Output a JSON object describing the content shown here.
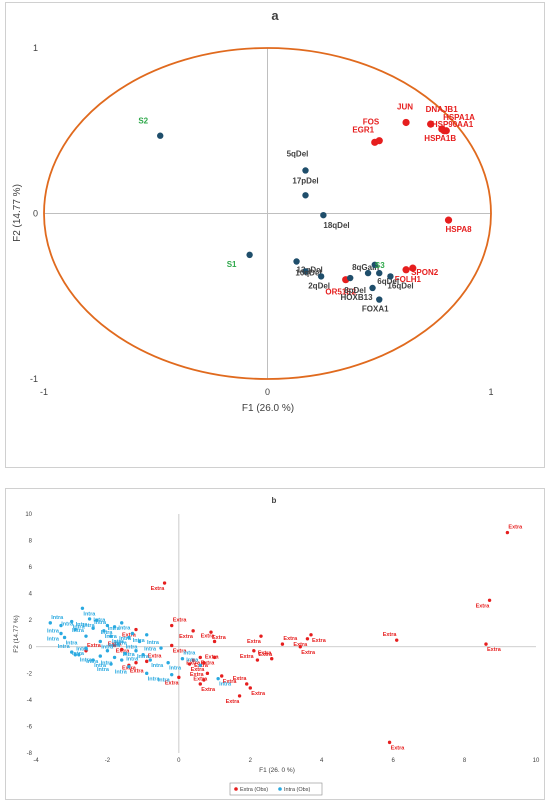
{
  "chart_data": [
    {
      "type": "scatter",
      "title": "a",
      "xlabel": "F1 (26.0 %)",
      "ylabel": "F2 (14.77 %)",
      "xlim": [
        -1,
        1
      ],
      "ylim": [
        -1,
        1
      ],
      "x_ticks": [
        "-1",
        "0",
        "1"
      ],
      "y_ticks": [
        "1",
        "0",
        "-1"
      ],
      "circle": {
        "color": "#E06A1E"
      },
      "colors": {
        "red": "#E61E1E",
        "blue": "#1F4E6B",
        "green": "#2EA84A",
        "dark": "#404040"
      },
      "series": [
        {
          "points": [
            {
              "x": 0.62,
              "y": 0.55,
              "label": "JUN"
            },
            {
              "x": 0.48,
              "y": 0.43,
              "label": "FOS"
            },
            {
              "x": 0.5,
              "y": 0.44,
              "label": "EGR1"
            },
            {
              "x": 0.73,
              "y": 0.54,
              "label": "DNAJB1"
            },
            {
              "x": 0.79,
              "y": 0.5,
              "label": "HSPA1A"
            },
            {
              "x": 0.78,
              "y": 0.51,
              "label": "HSP90AA1"
            },
            {
              "x": 0.8,
              "y": 0.5,
              "label": "HSPA1B"
            },
            {
              "x": 0.81,
              "y": -0.04,
              "label": "HSPA8"
            },
            {
              "x": 0.62,
              "y": -0.34,
              "label": "SPON2"
            },
            {
              "x": 0.65,
              "y": -0.33,
              "label": "FOLH1"
            },
            {
              "x": 0.35,
              "y": -0.4,
              "label": "OR51E2"
            }
          ]
        },
        {
          "points": [
            {
              "x": 0.17,
              "y": 0.26,
              "label": "5qDel"
            },
            {
              "x": 0.17,
              "y": 0.11,
              "label": "17pDel"
            },
            {
              "x": 0.25,
              "y": -0.01,
              "label": "18qDel"
            },
            {
              "x": 0.13,
              "y": -0.29,
              "label": "13qDel"
            },
            {
              "x": 0.17,
              "y": -0.35,
              "label": "10qDel"
            },
            {
              "x": 0.24,
              "y": -0.38,
              "label": "2qDel"
            },
            {
              "x": 0.37,
              "y": -0.39,
              "label": "8pDel"
            },
            {
              "x": 0.45,
              "y": -0.36,
              "label": "8qGain"
            },
            {
              "x": 0.5,
              "y": -0.36,
              "label": "6qDel"
            },
            {
              "x": 0.55,
              "y": -0.38,
              "label": "16qDel"
            },
            {
              "x": 0.47,
              "y": -0.45,
              "label": "HOXB13"
            },
            {
              "x": 0.5,
              "y": -0.52,
              "label": "FOXA1"
            },
            {
              "x": -0.48,
              "y": 0.47,
              "label": "S2"
            },
            {
              "x": -0.08,
              "y": -0.25,
              "label": "S1"
            },
            {
              "x": 0.48,
              "y": -0.31,
              "label": "S3"
            }
          ]
        }
      ]
    },
    {
      "type": "scatter",
      "title": "b",
      "xlabel": "F1 (26. 0 %)",
      "ylabel": "F2 (14.77 %)",
      "xlim": [
        -4,
        10
      ],
      "ylim": [
        -8,
        10
      ],
      "x_ticks": [
        "-4",
        "-2",
        "0",
        "2",
        "4",
        "6",
        "8",
        "10"
      ],
      "y_ticks": [
        "10",
        "8",
        "6",
        "4",
        "2",
        "0",
        "-2",
        "-4",
        "-6",
        "-8"
      ],
      "legend": {
        "position": "bottom",
        "items": [
          "Extra (Obs)",
          "Intra (Obs)"
        ]
      },
      "series": [
        {
          "name": "Extra (Obs)",
          "color": "#E61E1E",
          "point_label": "Extra",
          "points": [
            [
              9.2,
              8.6
            ],
            [
              8.7,
              3.5
            ],
            [
              8.6,
              0.2
            ],
            [
              6.1,
              0.5
            ],
            [
              5.9,
              -7.2
            ],
            [
              -0.4,
              4.8
            ],
            [
              -0.2,
              1.6
            ],
            [
              0.4,
              1.2
            ],
            [
              0.9,
              1.1
            ],
            [
              1.0,
              0.4
            ],
            [
              -0.2,
              0.1
            ],
            [
              2.3,
              0.8
            ],
            [
              2.9,
              0.2
            ],
            [
              3.6,
              0.6
            ],
            [
              3.7,
              0.9
            ],
            [
              2.6,
              -0.9
            ],
            [
              3.4,
              0.0
            ],
            [
              2.1,
              -0.3
            ],
            [
              2.2,
              -1.0
            ],
            [
              1.7,
              -3.7
            ],
            [
              2.0,
              -3.1
            ],
            [
              1.9,
              -2.8
            ],
            [
              1.2,
              -2.2
            ],
            [
              0.8,
              -2.0
            ],
            [
              0.7,
              -1.2
            ],
            [
              0.6,
              -0.8
            ],
            [
              0.6,
              -2.8
            ],
            [
              0.7,
              -2.5
            ],
            [
              0.4,
              -1.0
            ],
            [
              0.0,
              -2.3
            ],
            [
              -0.9,
              -1.1
            ],
            [
              -1.2,
              -1.2
            ],
            [
              -1.4,
              -1.4
            ],
            [
              -1.6,
              -0.2
            ],
            [
              -1.8,
              0.1
            ],
            [
              -1.2,
              1.3
            ],
            [
              -2.6,
              -0.3
            ],
            [
              1.0,
              -0.8
            ],
            [
              0.3,
              -1.3
            ]
          ]
        },
        {
          "name": "Intra (Obs)",
          "color": "#29A9E0",
          "point_label": "Intra",
          "points": [
            [
              -3.6,
              1.8
            ],
            [
              -3.3,
              1.6
            ],
            [
              -3.0,
              1.9
            ],
            [
              -2.9,
              1.3
            ],
            [
              -2.7,
              2.9
            ],
            [
              -2.5,
              2.1
            ],
            [
              -2.4,
              1.4
            ],
            [
              -2.3,
              2.0
            ],
            [
              -2.1,
              1.2
            ],
            [
              -2.0,
              1.6
            ],
            [
              -1.9,
              0.8
            ],
            [
              -1.8,
              1.5
            ],
            [
              -1.7,
              0.2
            ],
            [
              -1.6,
              1.8
            ],
            [
              -1.5,
              -0.5
            ],
            [
              -1.3,
              1.0
            ],
            [
              -1.2,
              -0.3
            ],
            [
              -1.1,
              0.4
            ],
            [
              -1.0,
              -0.6
            ],
            [
              -0.9,
              0.9
            ],
            [
              -0.8,
              -1.0
            ],
            [
              -0.5,
              -0.1
            ],
            [
              -0.3,
              -1.2
            ],
            [
              -0.2,
              -2.1
            ],
            [
              0.1,
              -0.9
            ],
            [
              -2.6,
              -0.1
            ],
            [
              -2.8,
              -0.6
            ],
            [
              -3.0,
              -0.4
            ],
            [
              -2.4,
              -1.0
            ],
            [
              -2.2,
              -0.7
            ],
            [
              -2.0,
              -0.3
            ],
            [
              -1.8,
              -0.8
            ],
            [
              -3.2,
              0.7
            ],
            [
              -2.6,
              0.8
            ],
            [
              -2.2,
              0.4
            ],
            [
              -1.9,
              -1.3
            ],
            [
              -1.6,
              -1.0
            ],
            [
              -1.4,
              -1.5
            ],
            [
              -0.9,
              -2.0
            ],
            [
              0.6,
              -1.4
            ],
            [
              1.1,
              -2.4
            ],
            [
              -1.4,
              0.7
            ],
            [
              -2.9,
              -0.6
            ],
            [
              -3.3,
              1.0
            ]
          ]
        }
      ]
    }
  ]
}
